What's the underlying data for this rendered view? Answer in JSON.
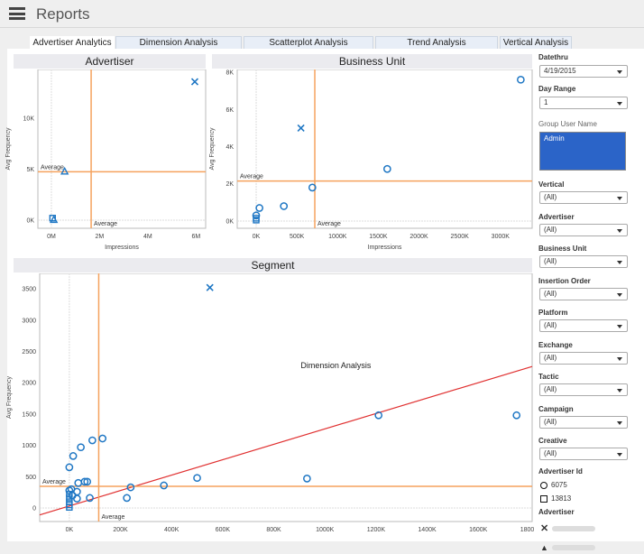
{
  "header": {
    "title": "Reports",
    "menu_icon": "hamburger-icon"
  },
  "tabs": [
    {
      "label": "Advertiser Analytics",
      "active": true
    },
    {
      "label": "Dimension Analysis"
    },
    {
      "label": "Scatterplot Analysis"
    },
    {
      "label": "Trend Analysis"
    },
    {
      "label": "Vertical Analysis"
    }
  ],
  "colors": {
    "marker": "#1f77c4",
    "average": "#f5a25d",
    "trend": "#e03030",
    "selection": "#2b64c8"
  },
  "chart_data": [
    {
      "type": "scatter",
      "title": "Advertiser",
      "xlabel": "Impressions",
      "ylabel": "Avg Frequency",
      "unit_x": "M",
      "unit_y": "K",
      "xlim": [
        -0.56,
        6.4
      ],
      "ylim": [
        -0.8,
        14.8
      ],
      "xticks": [
        0,
        2,
        4,
        6
      ],
      "xtick_labels": [
        "0M",
        "2M",
        "4M",
        "6M"
      ],
      "yticks": [
        0,
        5,
        10
      ],
      "ytick_labels": [
        "0K",
        "5K",
        "10K"
      ],
      "average": {
        "x": 1.65,
        "y": 4.75,
        "label": "Average"
      },
      "points": [
        {
          "x": 5.95,
          "y": 13.6,
          "shape": "x"
        },
        {
          "x": 0.55,
          "y": 4.8,
          "shape": "triangle"
        },
        {
          "x": 0.05,
          "y": 0.2,
          "shape": "square"
        },
        {
          "x": 0.1,
          "y": 0.05,
          "shape": "triangle"
        }
      ]
    },
    {
      "type": "scatter",
      "title": "Business Unit",
      "xlabel": "Impressions",
      "ylabel": "Avg Frequency",
      "xlim": [
        -233,
        3390
      ],
      "ylim": [
        -0.39,
        8.15
      ],
      "xticks": [
        0,
        500,
        1000,
        1500,
        2000,
        2500,
        3000
      ],
      "xtick_labels": [
        "0K",
        "500K",
        "1000K",
        "1500K",
        "2000K",
        "2500K",
        "3000K"
      ],
      "yticks": [
        0,
        2,
        4,
        6,
        8
      ],
      "ytick_labels": [
        "0K",
        "2K",
        "4K",
        "6K",
        "8K"
      ],
      "average": {
        "x": 720,
        "y": 2.15,
        "label": "Average"
      },
      "points": [
        {
          "x": 550,
          "y": 5.0,
          "shape": "x"
        },
        {
          "x": 3250,
          "y": 7.6,
          "shape": "circle"
        },
        {
          "x": 1610,
          "y": 2.8,
          "shape": "circle"
        },
        {
          "x": 690,
          "y": 1.8,
          "shape": "circle"
        },
        {
          "x": 340,
          "y": 0.8,
          "shape": "circle"
        },
        {
          "x": 40,
          "y": 0.7,
          "shape": "circle"
        },
        {
          "x": 0,
          "y": 0.3,
          "shape": "circle"
        },
        {
          "x": 0,
          "y": 0.15,
          "shape": "square"
        },
        {
          "x": 0,
          "y": 0.05,
          "shape": "square"
        }
      ]
    },
    {
      "type": "scatter",
      "title": "Segment",
      "ylabel": "Avg Frequency",
      "annotation": "Dimension Analysis",
      "xlim": [
        -116,
        1811
      ],
      "ylim": [
        -216,
        3746
      ],
      "xticks": [
        0,
        200,
        400,
        600,
        800,
        1000,
        1200,
        1400,
        1600,
        1800
      ],
      "xtick_labels": [
        "0K",
        "200K",
        "400K",
        "600K",
        "800K",
        "1000K",
        "1200K",
        "1400K",
        "1600K",
        "1800K"
      ],
      "yticks": [
        0,
        500,
        1000,
        1500,
        2000,
        2500,
        3000,
        3500
      ],
      "ytick_labels": [
        "0",
        "500",
        "1000",
        "1500",
        "2000",
        "2500",
        "3000",
        "3500"
      ],
      "average": {
        "x": 115,
        "y": 345,
        "label": "Average"
      },
      "trend": [
        [
          -116,
          -110
        ],
        [
          1811,
          2260
        ]
      ],
      "points": [
        {
          "x": 550,
          "y": 3520,
          "shape": "x"
        },
        {
          "x": 1210,
          "y": 1480,
          "shape": "circle"
        },
        {
          "x": 1750,
          "y": 1480,
          "shape": "circle"
        },
        {
          "x": 930,
          "y": 470,
          "shape": "circle"
        },
        {
          "x": 500,
          "y": 480,
          "shape": "circle"
        },
        {
          "x": 370,
          "y": 360,
          "shape": "circle"
        },
        {
          "x": 240,
          "y": 330,
          "shape": "circle"
        },
        {
          "x": 225,
          "y": 160,
          "shape": "circle"
        },
        {
          "x": 130,
          "y": 1110,
          "shape": "circle"
        },
        {
          "x": 90,
          "y": 1080,
          "shape": "circle"
        },
        {
          "x": 45,
          "y": 970,
          "shape": "circle"
        },
        {
          "x": 15,
          "y": 830,
          "shape": "circle"
        },
        {
          "x": 0,
          "y": 650,
          "shape": "circle"
        },
        {
          "x": 35,
          "y": 400,
          "shape": "circle"
        },
        {
          "x": 60,
          "y": 420,
          "shape": "circle"
        },
        {
          "x": 70,
          "y": 420,
          "shape": "circle"
        },
        {
          "x": 80,
          "y": 160,
          "shape": "circle"
        },
        {
          "x": 30,
          "y": 260,
          "shape": "circle"
        },
        {
          "x": 30,
          "y": 150,
          "shape": "circle"
        },
        {
          "x": 0,
          "y": 280,
          "shape": "circle"
        },
        {
          "x": 0,
          "y": 220,
          "shape": "square"
        },
        {
          "x": 0,
          "y": 160,
          "shape": "square"
        },
        {
          "x": 0,
          "y": 100,
          "shape": "square"
        },
        {
          "x": 0,
          "y": 50,
          "shape": "square"
        },
        {
          "x": 0,
          "y": 10,
          "shape": "square"
        },
        {
          "x": 8,
          "y": 300,
          "shape": "circle"
        },
        {
          "x": 12,
          "y": 200,
          "shape": "circle"
        }
      ]
    }
  ],
  "sidebar": {
    "datethru": {
      "label": "Datethru",
      "value": "4/19/2015"
    },
    "day_range": {
      "label": "Day Range",
      "value": "1"
    },
    "group_user": {
      "label": "Group User Name",
      "selected": "Admin"
    },
    "filters": [
      {
        "label": "Vertical",
        "value": "(All)"
      },
      {
        "label": "Advertiser",
        "value": "(All)"
      },
      {
        "label": "Business Unit",
        "value": "(All)"
      },
      {
        "label": "Insertion Order",
        "value": "(All)"
      },
      {
        "label": "Platform",
        "value": "(All)"
      },
      {
        "label": "Exchange",
        "value": "(All)"
      },
      {
        "label": "Tactic",
        "value": "(All)"
      },
      {
        "label": "Campaign",
        "value": "(All)"
      },
      {
        "label": "Creative",
        "value": "(All)"
      }
    ],
    "advertiser_id": {
      "label": "Advertiser Id",
      "items": [
        {
          "shape": "circle",
          "label": "6075"
        },
        {
          "shape": "square",
          "label": "13813"
        }
      ]
    },
    "advertiser_legend": {
      "label": "Advertiser",
      "items": [
        {
          "shape": "x"
        },
        {
          "shape": "triangle"
        }
      ]
    }
  }
}
